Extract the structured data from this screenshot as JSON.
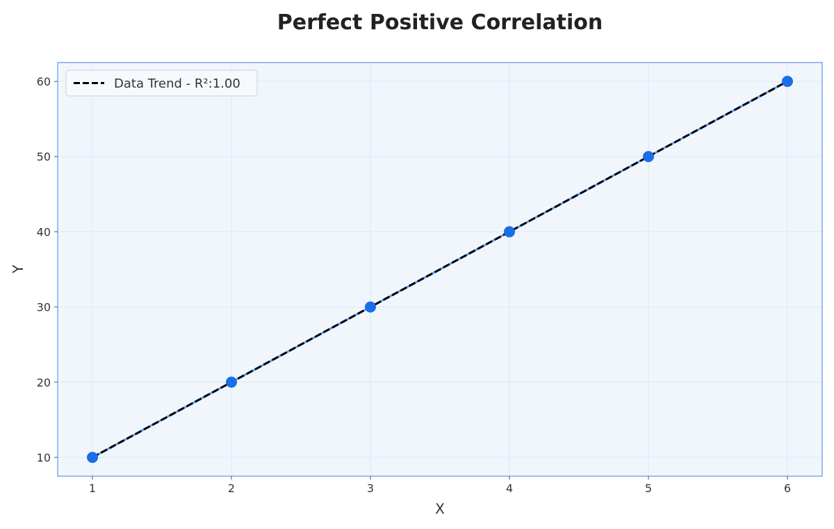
{
  "chart_data": {
    "type": "scatter",
    "title": "Perfect Positive Correlation",
    "xlabel": "X",
    "ylabel": "Y",
    "x": [
      1,
      2,
      3,
      4,
      5,
      6
    ],
    "series": [
      {
        "values": [
          10,
          20,
          30,
          40,
          50,
          60
        ],
        "color": "#1a6ee8",
        "line_color": "#5aa0f0"
      }
    ],
    "trend_line": {
      "name": "Data Trend - R²:1.00",
      "values": [
        10,
        20,
        30,
        40,
        50,
        60
      ],
      "color": "#000000",
      "style": "dashed"
    },
    "x_ticks": [
      1,
      2,
      3,
      4,
      5,
      6
    ],
    "y_ticks": [
      10,
      20,
      30,
      40,
      50,
      60
    ],
    "xlim": [
      0.75,
      6.25
    ],
    "ylim": [
      7.5,
      62.5
    ],
    "grid": true,
    "legend_position": "top-left",
    "colors": {
      "background": "#f1f6fd",
      "frame": "#9bbcf0",
      "grid": "#dce7f8"
    }
  }
}
